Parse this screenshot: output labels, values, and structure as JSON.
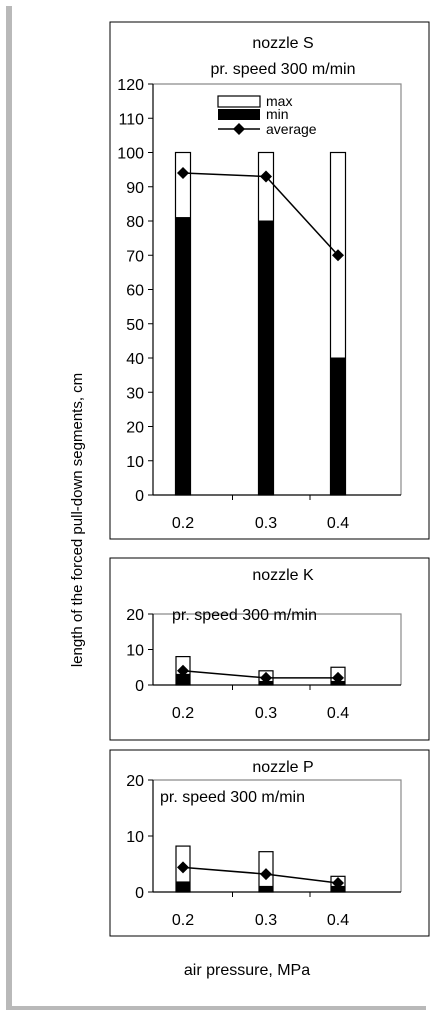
{
  "figure": {
    "ylabel": "length of the forced pull-down segments, cm",
    "xlabel": "air pressure, MPa"
  },
  "chart_data": [
    {
      "type": "bar",
      "title": "nozzle S",
      "subtitle": "pr. speed 300 m/min",
      "categories": [
        "0.2",
        "0.3",
        "0.4"
      ],
      "ylim": [
        0,
        120
      ],
      "yticks": [
        0,
        10,
        20,
        30,
        40,
        50,
        60,
        70,
        80,
        90,
        100,
        110,
        120
      ],
      "series": [
        {
          "name": "max",
          "values": [
            100,
            100,
            100
          ]
        },
        {
          "name": "min",
          "values": [
            81,
            80,
            40
          ]
        },
        {
          "name": "average",
          "values": [
            94,
            93,
            70
          ]
        }
      ],
      "legend": {
        "placement": "top-center",
        "entries": [
          "max",
          "min",
          "average"
        ]
      }
    },
    {
      "type": "bar",
      "title": "nozzle K",
      "subtitle": "pr. speed 300 m/min",
      "categories": [
        "0.2",
        "0.3",
        "0.4"
      ],
      "ylim": [
        0,
        20
      ],
      "yticks": [
        0,
        10,
        20
      ],
      "series": [
        {
          "name": "max",
          "values": [
            8,
            4,
            5
          ]
        },
        {
          "name": "min",
          "values": [
            3,
            1,
            1
          ]
        },
        {
          "name": "average",
          "values": [
            4,
            2,
            2
          ]
        }
      ]
    },
    {
      "type": "bar",
      "title": "nozzle P",
      "subtitle": "pr. speed 300 m/min",
      "categories": [
        "0.2",
        "0.3",
        "0.4"
      ],
      "ylim": [
        0,
        20
      ],
      "yticks": [
        0,
        10,
        20
      ],
      "series": [
        {
          "name": "max",
          "values": [
            8.2,
            7.2,
            2.8
          ]
        },
        {
          "name": "min",
          "values": [
            1.8,
            1.0,
            1.0
          ]
        },
        {
          "name": "average",
          "values": [
            4.4,
            3.2,
            1.6
          ]
        }
      ]
    }
  ]
}
